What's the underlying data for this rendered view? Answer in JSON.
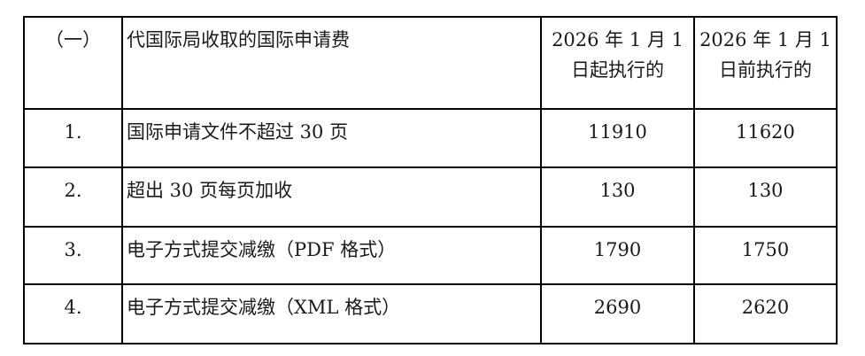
{
  "table": {
    "header": {
      "index": "（一）",
      "item": "代国际局收取的国际申请费",
      "new_fee": "2026 年 1 月 1\n日起执行的",
      "old_fee": "2026 年 1 月 1\n日前执行的"
    },
    "rows": [
      {
        "index": "1.",
        "item": "国际申请文件不超过 30 页",
        "new_fee": "11910",
        "old_fee": "11620"
      },
      {
        "index": "2.",
        "item": "超出 30 页每页加收",
        "new_fee": "130",
        "old_fee": "130"
      },
      {
        "index": "3.",
        "item": "电子方式提交减缴（PDF 格式）",
        "new_fee": "1790",
        "old_fee": "1750"
      },
      {
        "index": "4.",
        "item": "电子方式提交减缴（XML 格式）",
        "new_fee": "2690",
        "old_fee": "2620"
      }
    ],
    "text_color": "#1a1a1a",
    "border_color": "#000000"
  }
}
